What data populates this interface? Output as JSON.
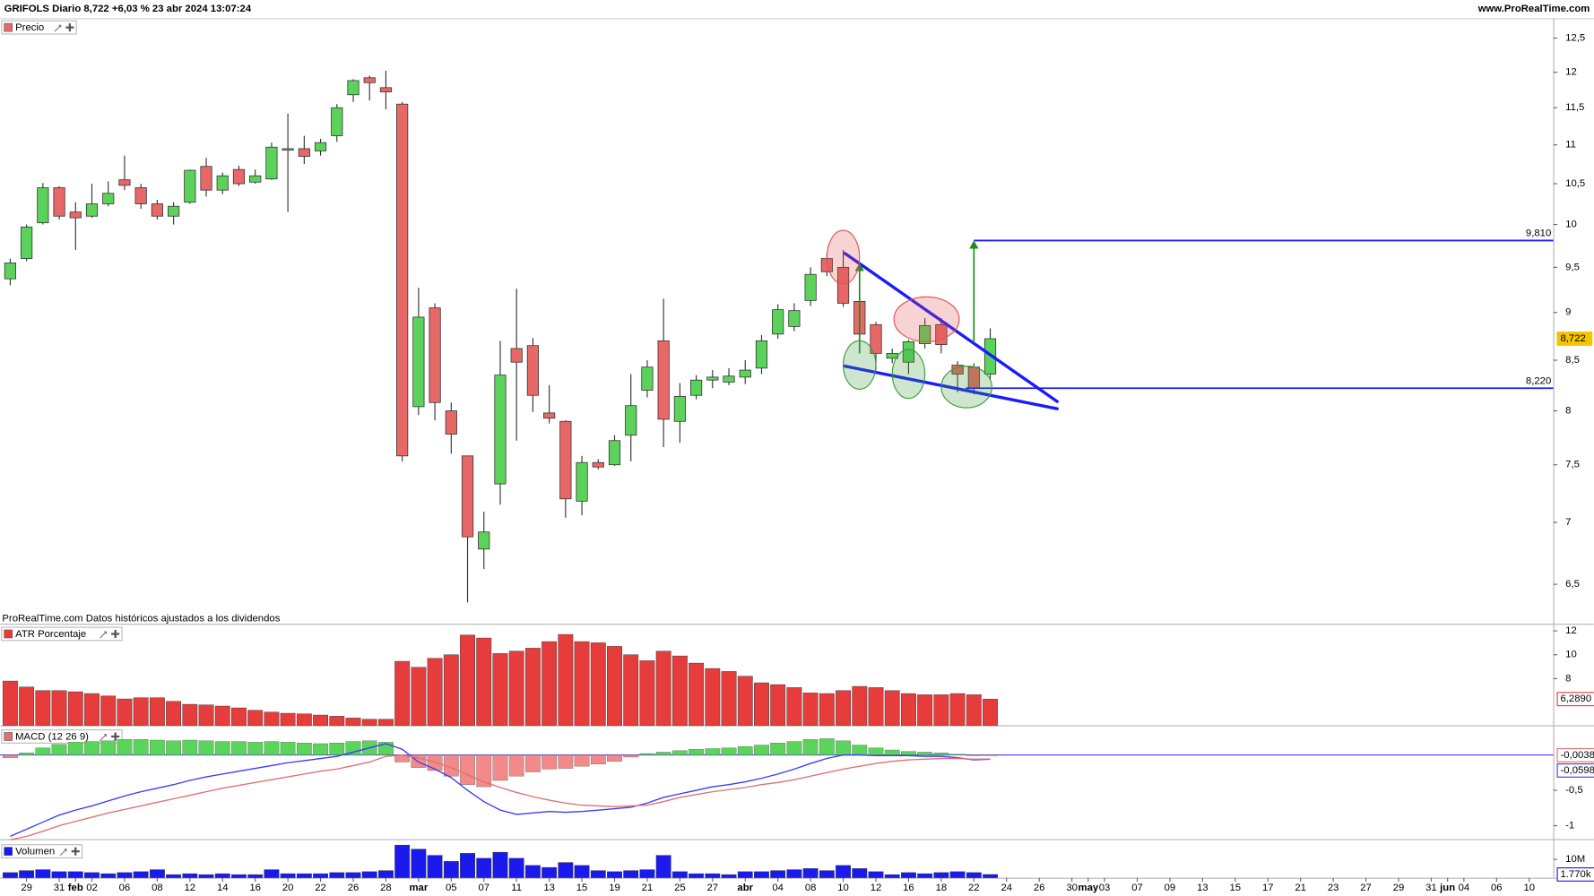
{
  "header": {
    "title": "GRIFOLS Diario 8,722 +6,03 % 23 abr 2024 13:07:24",
    "brand": "www.ProRealTime.com"
  },
  "note": "ProRealTime.com Datos históricos ajustados a los dividendos",
  "chart_data": [
    {
      "type": "candlestick",
      "title": "Precio",
      "x": [
        0,
        1,
        2,
        3,
        4,
        5,
        6,
        7,
        8,
        9,
        10,
        11,
        12,
        13,
        14,
        15,
        16,
        17,
        18,
        19,
        20,
        21,
        22,
        23,
        24,
        25,
        26,
        27,
        28,
        29,
        30,
        31,
        32,
        33,
        34,
        35,
        36,
        37,
        38,
        39,
        40,
        41,
        42,
        43,
        44,
        45,
        46,
        47,
        48,
        49,
        50,
        51,
        52,
        53,
        54,
        55,
        56,
        57,
        58,
        59,
        60
      ],
      "xlim": [
        -0.62,
        94.47
      ],
      "xticks": [
        {
          "value": 1,
          "label": "29"
        },
        {
          "value": 3,
          "label": "31"
        },
        {
          "value": 4,
          "label": "feb"
        },
        {
          "value": 5,
          "label": "02"
        },
        {
          "value": 7,
          "label": "06"
        },
        {
          "value": 9,
          "label": "08"
        },
        {
          "value": 11,
          "label": "12"
        },
        {
          "value": 13,
          "label": "14"
        },
        {
          "value": 15,
          "label": "16"
        },
        {
          "value": 17,
          "label": "20"
        },
        {
          "value": 19,
          "label": "22"
        },
        {
          "value": 21,
          "label": "26"
        },
        {
          "value": 23,
          "label": "28"
        },
        {
          "value": 25,
          "label": "mar"
        },
        {
          "value": 27,
          "label": "05"
        },
        {
          "value": 29,
          "label": "07"
        },
        {
          "value": 31,
          "label": "11"
        },
        {
          "value": 33,
          "label": "13"
        },
        {
          "value": 35,
          "label": "15"
        },
        {
          "value": 37,
          "label": "19"
        },
        {
          "value": 39,
          "label": "21"
        },
        {
          "value": 41,
          "label": "25"
        },
        {
          "value": 43,
          "label": "27"
        },
        {
          "value": 45,
          "label": "abr"
        },
        {
          "value": 47,
          "label": "04"
        },
        {
          "value": 49,
          "label": "08"
        },
        {
          "value": 51,
          "label": "10"
        },
        {
          "value": 53,
          "label": "12"
        },
        {
          "value": 55,
          "label": "16"
        },
        {
          "value": 57,
          "label": "18"
        },
        {
          "value": 59,
          "label": "22"
        },
        {
          "value": 61,
          "label": "24"
        },
        {
          "value": 63,
          "label": "26"
        },
        {
          "value": 65,
          "label": "30"
        },
        {
          "value": 66,
          "label": "may"
        },
        {
          "value": 67,
          "label": "03"
        },
        {
          "value": 69,
          "label": "07"
        },
        {
          "value": 71,
          "label": "09"
        },
        {
          "value": 73,
          "label": "13"
        },
        {
          "value": 75,
          "label": "15"
        },
        {
          "value": 77,
          "label": "17"
        },
        {
          "value": 79,
          "label": "21"
        },
        {
          "value": 81,
          "label": "23"
        },
        {
          "value": 83,
          "label": "27"
        },
        {
          "value": 85,
          "label": "29"
        },
        {
          "value": 87,
          "label": "31"
        },
        {
          "value": 88,
          "label": "jun"
        },
        {
          "value": 89,
          "label": "04"
        },
        {
          "value": 91,
          "label": "06"
        },
        {
          "value": 93,
          "label": "10"
        }
      ],
      "open": [
        9.37,
        9.6,
        10.02,
        10.45,
        10.15,
        10.1,
        10.25,
        10.55,
        10.45,
        10.25,
        10.1,
        10.27,
        10.72,
        10.42,
        10.68,
        10.52,
        10.56,
        10.93,
        10.95,
        10.92,
        11.12,
        11.68,
        11.92,
        11.78,
        11.55,
        8.04,
        9.05,
        8.0,
        7.58,
        6.78,
        7.33,
        8.62,
        8.65,
        7.98,
        7.9,
        7.18,
        7.52,
        7.5,
        7.77,
        8.2,
        8.7,
        7.9,
        8.15,
        8.3,
        8.28,
        8.33,
        8.42,
        8.77,
        8.85,
        9.13,
        9.6,
        9.5,
        9.12,
        8.87,
        8.52,
        8.48,
        8.67,
        8.87,
        8.45,
        8.43,
        8.36
      ],
      "high": [
        9.6,
        10.0,
        10.51,
        10.47,
        10.27,
        10.5,
        10.53,
        10.86,
        10.5,
        10.3,
        10.27,
        10.68,
        10.83,
        10.64,
        10.73,
        10.68,
        11.03,
        11.42,
        11.12,
        11.08,
        11.55,
        11.9,
        11.95,
        12.02,
        11.58,
        9.27,
        9.1,
        8.08,
        7.58,
        7.09,
        8.7,
        9.26,
        8.73,
        8.25,
        7.91,
        7.58,
        7.55,
        7.77,
        8.36,
        8.5,
        9.15,
        8.27,
        8.35,
        8.4,
        8.42,
        8.5,
        8.76,
        9.09,
        9.1,
        9.5,
        9.66,
        9.7,
        9.52,
        8.9,
        8.62,
        8.71,
        8.94,
        8.94,
        8.49,
        8.47,
        8.83
      ],
      "low": [
        9.3,
        9.57,
        10.0,
        10.06,
        9.7,
        10.08,
        10.22,
        10.42,
        10.19,
        10.06,
        10.0,
        10.25,
        10.34,
        10.37,
        10.47,
        10.5,
        10.55,
        10.15,
        10.75,
        10.86,
        11.04,
        11.58,
        11.6,
        11.48,
        7.53,
        7.96,
        7.91,
        7.6,
        6.36,
        6.62,
        7.15,
        7.72,
        7.99,
        7.88,
        7.04,
        7.06,
        7.46,
        7.49,
        7.53,
        8.13,
        7.66,
        7.7,
        8.11,
        8.22,
        8.25,
        8.26,
        8.36,
        8.72,
        8.8,
        9.07,
        9.4,
        9.06,
        8.57,
        8.4,
        8.47,
        8.36,
        8.62,
        8.57,
        8.18,
        8.16,
        8.3
      ],
      "close": [
        9.55,
        9.97,
        10.45,
        10.1,
        10.08,
        10.25,
        10.38,
        10.48,
        10.25,
        10.1,
        10.22,
        10.67,
        10.42,
        10.6,
        10.5,
        10.6,
        10.97,
        10.95,
        10.85,
        11.03,
        11.5,
        11.88,
        11.85,
        11.72,
        7.58,
        8.95,
        8.08,
        7.78,
        6.88,
        6.92,
        8.35,
        8.48,
        8.15,
        7.93,
        7.2,
        7.52,
        7.48,
        7.72,
        8.05,
        8.43,
        7.92,
        8.14,
        8.3,
        8.33,
        8.34,
        8.4,
        8.7,
        9.03,
        9.02,
        9.42,
        9.45,
        9.1,
        8.77,
        8.57,
        8.57,
        8.69,
        8.86,
        8.66,
        8.36,
        8.22,
        8.722
      ],
      "up_color": "#5bd35b",
      "down_color": "#e86868",
      "ylim": [
        6.2,
        12.8
      ],
      "log_scale": true,
      "grid": false,
      "yticks": [
        {
          "value": 6.5,
          "label": "6,5"
        },
        7,
        {
          "value": 7.5,
          "label": "7,5"
        },
        8,
        {
          "value": 8.5,
          "label": "8,5"
        },
        9,
        {
          "value": 9.5,
          "label": "9,5"
        },
        10,
        {
          "value": 10.5,
          "label": "10,5"
        },
        11,
        {
          "value": 11.5,
          "label": "11,5"
        },
        12,
        {
          "value": 12.5,
          "label": "12,5"
        }
      ],
      "last_value_label": "8,722",
      "label_color": "#f5c400",
      "hlines": [
        {
          "value": 9.81,
          "label": "9,810",
          "x_from": 59
        },
        {
          "value": 8.22,
          "label": "8,220",
          "x_from": 58.5
        }
      ],
      "hline_color": "#1a1aff",
      "trendlines": [
        {
          "x": [
            51.1,
            64.1
          ],
          "y": [
            9.66,
            8.09
          ]
        },
        {
          "x": [
            51.1,
            64.1
          ],
          "y": [
            8.44,
            8.02
          ]
        }
      ],
      "trendline_color": "#1a1aff",
      "arrows": [
        {
          "x": 52,
          "y": [
            8.57,
            9.55
          ]
        },
        {
          "x": 59,
          "y": [
            8.68,
            9.81
          ]
        }
      ],
      "arrow_color": "#1e8c1e",
      "ellipses": [
        {
          "x": [
            50,
            52
          ],
          "y": [
            9.31,
            9.93
          ],
          "color": "#e05050"
        },
        {
          "x": [
            54.1,
            58.1
          ],
          "y": [
            8.69,
            9.17
          ],
          "color": "#e05050"
        },
        {
          "x": [
            51,
            53
          ],
          "y": [
            8.21,
            8.7
          ],
          "color": "#3a9a3a"
        },
        {
          "x": [
            54,
            56
          ],
          "y": [
            8.12,
            8.61
          ],
          "color": "#3a9a3a"
        },
        {
          "x": [
            57,
            60.1
          ],
          "y": [
            8.03,
            8.44
          ],
          "color": "#3a9a3a"
        }
      ]
    },
    {
      "type": "bar",
      "title": "ATR Porcentaje",
      "color": "#e63c3c",
      "values": [
        7.8,
        7.3,
        7.0,
        7.0,
        6.9,
        6.75,
        6.55,
        6.3,
        6.4,
        6.4,
        6.1,
        5.85,
        5.8,
        5.7,
        5.55,
        5.35,
        5.2,
        5.1,
        5.05,
        4.95,
        4.85,
        4.7,
        4.6,
        4.6,
        9.45,
        8.95,
        9.7,
        10.0,
        11.65,
        11.4,
        10.1,
        10.3,
        10.55,
        11.1,
        11.7,
        11.1,
        11.0,
        10.7,
        10.0,
        9.5,
        10.3,
        9.9,
        9.3,
        8.85,
        8.6,
        8.2,
        7.65,
        7.5,
        7.25,
        6.8,
        6.75,
        7.0,
        7.35,
        7.25,
        7.0,
        6.75,
        6.65,
        6.65,
        6.75,
        6.65,
        6.289
      ],
      "ylim": [
        4.09,
        12.51
      ],
      "yticks": [
        8,
        10,
        12
      ],
      "last_value_label": "6,2890"
    },
    {
      "type": "combo",
      "title": "MACD (12 26 9)",
      "histogram": [
        -0.04,
        0.03,
        0.1,
        0.15,
        0.18,
        0.19,
        0.2,
        0.22,
        0.22,
        0.21,
        0.2,
        0.21,
        0.2,
        0.19,
        0.19,
        0.18,
        0.19,
        0.18,
        0.17,
        0.16,
        0.17,
        0.19,
        0.2,
        0.18,
        -0.1,
        -0.18,
        -0.22,
        -0.3,
        -0.42,
        -0.45,
        -0.36,
        -0.3,
        -0.24,
        -0.2,
        -0.19,
        -0.16,
        -0.13,
        -0.09,
        -0.03,
        0.02,
        0.04,
        0.06,
        0.08,
        0.09,
        0.1,
        0.12,
        0.14,
        0.17,
        0.19,
        0.22,
        0.23,
        0.2,
        0.14,
        0.1,
        0.07,
        0.05,
        0.04,
        0.03,
        0.01,
        -0.01,
        -0.0038
      ],
      "histogram_colors": [
        "#5ad45a",
        "#f28a8a"
      ],
      "last_value_label": "-0,0038",
      "label_color": "#e07070",
      "series": [
        {
          "color": "#3b3bff",
          "last_value_label": "-0,0598",
          "values": [
            -1.15,
            -1.05,
            -0.95,
            -0.85,
            -0.78,
            -0.72,
            -0.65,
            -0.58,
            -0.52,
            -0.47,
            -0.42,
            -0.36,
            -0.31,
            -0.27,
            -0.23,
            -0.19,
            -0.15,
            -0.11,
            -0.08,
            -0.05,
            -0.02,
            0.04,
            0.1,
            0.16,
            0.08,
            -0.1,
            -0.2,
            -0.32,
            -0.5,
            -0.66,
            -0.78,
            -0.84,
            -0.82,
            -0.8,
            -0.81,
            -0.8,
            -0.78,
            -0.76,
            -0.74,
            -0.68,
            -0.6,
            -0.55,
            -0.5,
            -0.45,
            -0.42,
            -0.38,
            -0.33,
            -0.27,
            -0.2,
            -0.12,
            -0.05,
            0.0,
            0.0,
            -0.01,
            -0.01,
            -0.01,
            -0.02,
            -0.02,
            -0.04,
            -0.07,
            -0.0598
          ]
        },
        {
          "color": "#e07070",
          "values": [
            -1.2,
            -1.15,
            -1.08,
            -1.0,
            -0.94,
            -0.88,
            -0.82,
            -0.77,
            -0.72,
            -0.67,
            -0.62,
            -0.57,
            -0.52,
            -0.47,
            -0.43,
            -0.39,
            -0.35,
            -0.31,
            -0.27,
            -0.23,
            -0.2,
            -0.15,
            -0.1,
            -0.02,
            0.0,
            -0.04,
            -0.1,
            -0.18,
            -0.28,
            -0.38,
            -0.46,
            -0.53,
            -0.59,
            -0.64,
            -0.68,
            -0.71,
            -0.72,
            -0.73,
            -0.72,
            -0.71,
            -0.66,
            -0.6,
            -0.56,
            -0.52,
            -0.49,
            -0.46,
            -0.42,
            -0.39,
            -0.35,
            -0.3,
            -0.25,
            -0.2,
            -0.16,
            -0.12,
            -0.09,
            -0.07,
            -0.06,
            -0.05,
            -0.05,
            -0.06,
            -0.056
          ]
        }
      ],
      "ylim": [
        -1.19,
        0.39
      ],
      "yticks": [
        {
          "value": -0.5,
          "label": "-0,5"
        },
        -1
      ]
    },
    {
      "type": "bar",
      "title": "Volumen",
      "color": "#1a1aee",
      "values": [
        2.8,
        3.9,
        4.4,
        3.3,
        3.3,
        2.8,
        2.2,
        2.8,
        3.3,
        4.4,
        1.7,
        2.2,
        1.7,
        2.2,
        1.7,
        1.7,
        4.4,
        2.2,
        2.2,
        2.2,
        2.8,
        2.8,
        3.3,
        3.9,
        17.8,
        15.6,
        12.2,
        8.9,
        13.3,
        10.6,
        13.9,
        10.6,
        6.7,
        5.6,
        8.3,
        6.7,
        3.9,
        3.3,
        3.9,
        4.4,
        12.2,
        3.3,
        2.2,
        2.2,
        1.7,
        3.3,
        3.3,
        3.9,
        4.4,
        5.0,
        3.9,
        6.7,
        5.0,
        3.3,
        1.7,
        2.8,
        2.2,
        2.8,
        3.3,
        2.8,
        1.77
      ],
      "ylim": [
        0,
        19.4
      ],
      "yticks": [
        {
          "value": 10,
          "label": "10M"
        }
      ],
      "last_value_label": "1.770k"
    }
  ]
}
